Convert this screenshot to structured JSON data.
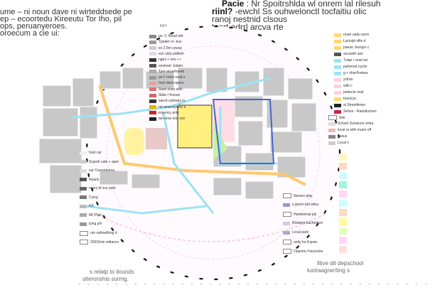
{
  "intro_left": {
    "lines": [
      "ume – ni noun dave ni wirteddsede pe",
      "ep – ecoortedu Kireeutu Tor Iho, pil",
      "ops, peruanyeroes.",
      "oroecum a cie ui:"
    ]
  },
  "intro_right": {
    "heading_1": "Pacie",
    "line_1": ": Nr Spoitrshlda wl onrem lal rilesuh",
    "heading_2": "riinl?",
    "line_2": "-ewchl Ss ouhwelonctl tocfaitiu olic",
    "line_3": "ranoj nestnid clsous",
    "line_4": "tasrt adrrl arcva rte"
  },
  "key": {
    "title": "KEY",
    "left_items": [
      {
        "label": "pe. 0. Road witl",
        "color": "#888888"
      },
      {
        "label": "Tpeder ro. bus",
        "color": "#999999"
      },
      {
        "label": "ex 3.5m cyway",
        "color": "#cccccc"
      },
      {
        "label": "ech side,clelboh",
        "color": "#dddddd"
      },
      {
        "label": "nges + nes + r",
        "color": "#333333"
      },
      {
        "label": "vestreet. tolater",
        "color": "#555555"
      },
      {
        "label": "Tyor accerhared",
        "color": "#aaaaaa"
      },
      {
        "label": "pe F mino road s",
        "color": "#999999"
      },
      {
        "label": "hool dred space",
        "color": "#e8a0a0"
      },
      {
        "label": "Swet shan with",
        "color": "#e07070"
      },
      {
        "label": "Slide / fnouse",
        "color": "#cc6666"
      },
      {
        "label": "sared cyteway rs",
        "color": "#333333"
      },
      {
        "label": "nd amenityspro e",
        "color": "#e8b000"
      },
      {
        "label": "ergency ants",
        "color": "#cc2222"
      },
      {
        "label": "ian area one son",
        "color": "#222222"
      }
    ],
    "right_items": [
      {
        "label": "route uadu uiom",
        "color": "#ffd870"
      },
      {
        "label": "Lpciulpl sfile d",
        "color": "#ffd870"
      },
      {
        "label": "paeas. bwngrs c",
        "color": "#ffd870"
      },
      {
        "label": "accesith aon",
        "color": "#555555"
      },
      {
        "label": "Tuiqe r road we",
        "color": "#9be3f5"
      },
      {
        "label": "parlened cycler",
        "color": "#9be3f5"
      },
      {
        "label": "g + shar/footwa",
        "color": "#9be3f5"
      },
      {
        "label": "yclisis",
        "color": "#ffd0dc"
      },
      {
        "label": "with c",
        "color": "#ffd0dc"
      },
      {
        "label": "pedecle routi",
        "color": "#ffd0dc"
      },
      {
        "label": "trian/cyc",
        "color": "#ffd870"
      },
      {
        "label": "ai Streetttmen",
        "color": "#222222"
      },
      {
        "label": "Sehen - Radolluchen",
        "color": "#cc2244"
      }
    ],
    "right_lower": [
      {
        "label": "Site",
        "color": "#ffffff"
      },
      {
        "label": "School Sonsiuon entra",
        "color": "#dddddd"
      },
      {
        "label": "local ra with mano off",
        "color": "#f5b5b5"
      },
      {
        "label": "spaus",
        "color": "#888888"
      },
      {
        "label": "Local s",
        "color": "#cccccc"
      }
    ],
    "left_lower": [
      {
        "label": "hool car",
        "color": "#eeeeee"
      },
      {
        "label": "Scpork cafe + aper",
        "color": "#cccccc"
      },
      {
        "label": "car Cenrorrierns",
        "color": "#dddddd"
      },
      {
        "label": "Nuack",
        "color": "#555555"
      },
      {
        "label": "nsery bl sce park",
        "color": "#666666"
      },
      {
        "label": "Cying",
        "color": "#777777"
      },
      {
        "label": "KA",
        "color": "#bbbbbb"
      },
      {
        "label": "ML Plah",
        "color": "#aaaaaa"
      },
      {
        "label": "lying pln",
        "color": "#999999"
      },
      {
        "label": "um radiowlking d",
        "color": "#ffffff"
      },
      {
        "label": "200/2min wldance",
        "color": "#ffffff"
      }
    ],
    "center_lower": [
      {
        "label": "Nursen play",
        "color": "#ffffff"
      },
      {
        "label": "s green ted wiley",
        "color": "#9999cc"
      },
      {
        "label": "Hardenmal pls",
        "color": "#ffffff"
      },
      {
        "label": "Rolatiep hachedool",
        "color": "#ccccdd"
      },
      {
        "label": "Local park",
        "color": "#aaaacc"
      },
      {
        "label": "unity for Expan",
        "color": "#ffffff"
      },
      {
        "label": "Opportu Futunsion",
        "color": "#ffffff"
      }
    ]
  },
  "captions": {
    "left_1": "s relatp to ilounds",
    "left_2": "siteronshis surmg.",
    "right_1": "iltive dit depschool",
    "right_2": "lustraagrarrting s"
  },
  "swatch_column": [
    "#fff7c0",
    "#ffd9c0",
    "#d0fbff",
    "#a0f5dc",
    "#ffd7f5",
    "#d0fbff",
    "#ffd9c0",
    "#fff9a0",
    "#e5ffc0",
    "#ffd7f5",
    "#ffe0e0"
  ],
  "colors": {
    "cycle_route": "#9be3f5",
    "main_road": "#ffc870",
    "school_site": "#fff080",
    "pedestrian": "#ffd0dc",
    "buildings": "#c8c8c8"
  }
}
